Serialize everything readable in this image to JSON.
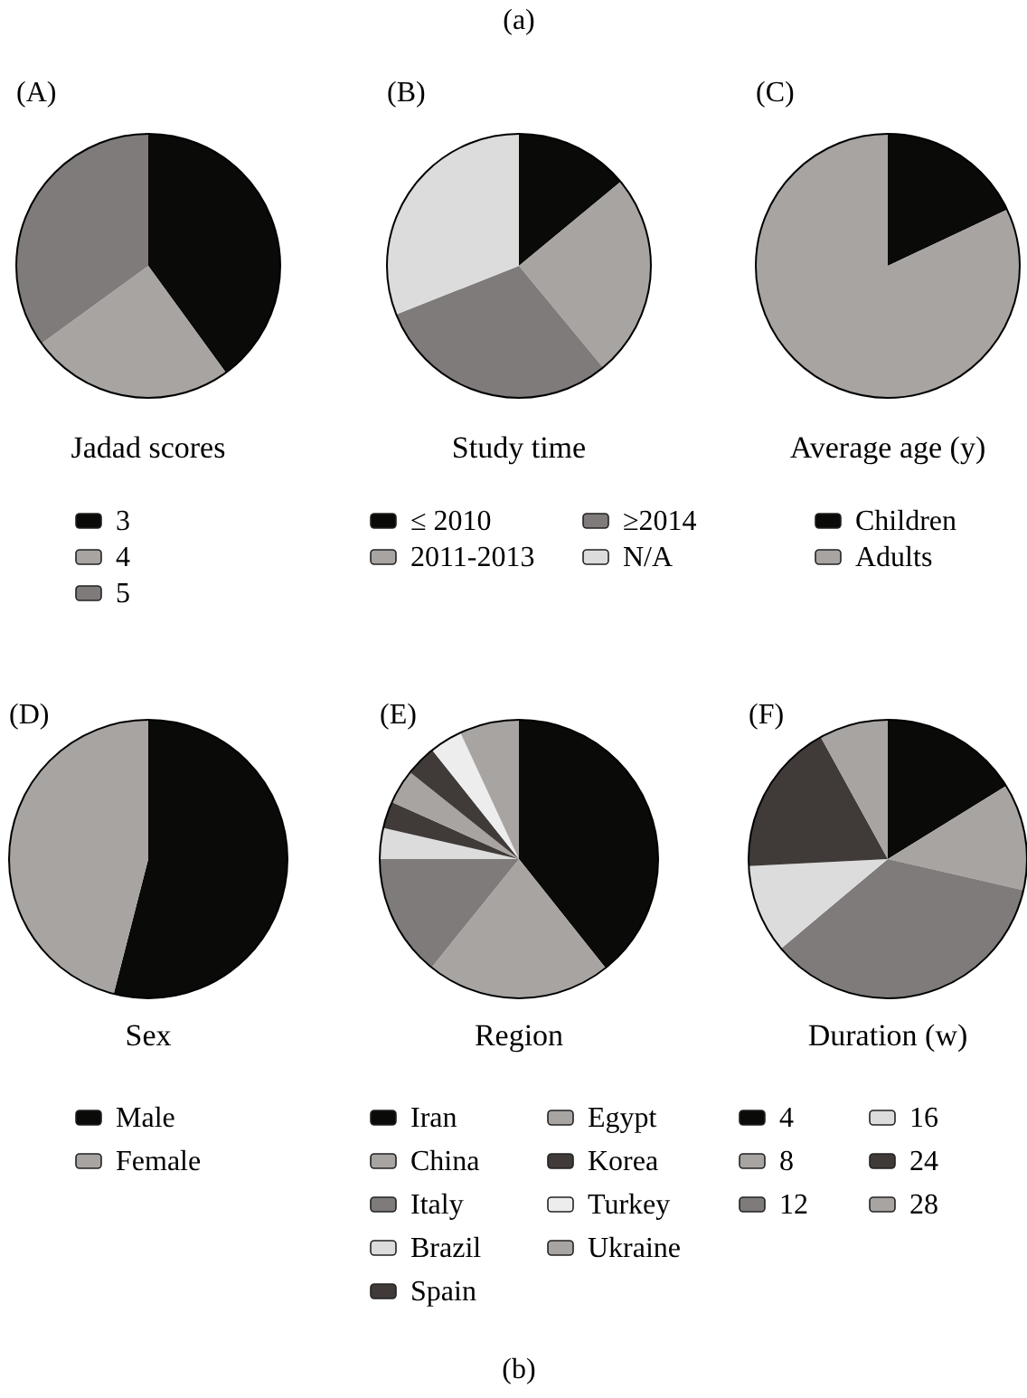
{
  "chart_data": [
    {
      "type": "pie",
      "title": "Jadad scores",
      "annotations": [
        "(A)",
        "(a)"
      ],
      "legend": "bottom",
      "categories": [
        "3",
        "4",
        "5"
      ],
      "values": [
        40,
        25,
        35
      ],
      "colors": [
        "#0a0a08",
        "#a8a4a1",
        "#7f7b7a"
      ]
    },
    {
      "type": "pie",
      "title": "Study time",
      "annotations": [
        "(B)"
      ],
      "legend": "bottom",
      "categories": [
        "≤ 2010",
        "2011-2013",
        "≥2014",
        "N/A"
      ],
      "values": [
        14,
        25,
        30,
        31
      ],
      "colors": [
        "#0a0a08",
        "#a8a4a1",
        "#7f7b7a",
        "#dcdcdc"
      ]
    },
    {
      "type": "pie",
      "title": "Average age (y)",
      "annotations": [
        "(C)"
      ],
      "legend": "bottom",
      "categories": [
        "Children",
        "Adults"
      ],
      "values": [
        18,
        82
      ],
      "colors": [
        "#0a0a08",
        "#a8a4a1"
      ]
    },
    {
      "type": "pie",
      "title": "Sex",
      "annotations": [
        "(D)"
      ],
      "legend": "bottom",
      "categories": [
        "Male",
        "Female"
      ],
      "values": [
        54,
        46
      ],
      "colors": [
        "#0a0a08",
        "#a8a4a1"
      ]
    },
    {
      "type": "pie",
      "title": "Region",
      "annotations": [
        "(E)",
        "(b)"
      ],
      "legend": "bottom",
      "categories": [
        "Iran",
        "China",
        "Italy",
        "Brazil",
        "Spain",
        "Egypt",
        "Korea",
        "Turkey",
        "Ukraine"
      ],
      "values": [
        39.3,
        21.5,
        14.2,
        3.6,
        3.1,
        4.0,
        3.6,
        3.8,
        6.9
      ],
      "colors": [
        "#0a0a08",
        "#a8a4a1",
        "#7f7b7a",
        "#dcdcdc",
        "#403b38",
        "#a8a4a1",
        "#403b38",
        "#ededed",
        "#a8a4a1"
      ]
    },
    {
      "type": "pie",
      "title": "Duration (w)",
      "annotations": [
        "(F)"
      ],
      "legend": "bottom",
      "categories": [
        "4",
        "8",
        "12",
        "16",
        "24",
        "28"
      ],
      "values": [
        16.2,
        12.4,
        35.3,
        10.3,
        17.8,
        8
      ],
      "colors": [
        "#0a0a08",
        "#a8a4a1",
        "#7f7b7a",
        "#dcdcdc",
        "#403b38",
        "#a8a4a1"
      ]
    }
  ]
}
